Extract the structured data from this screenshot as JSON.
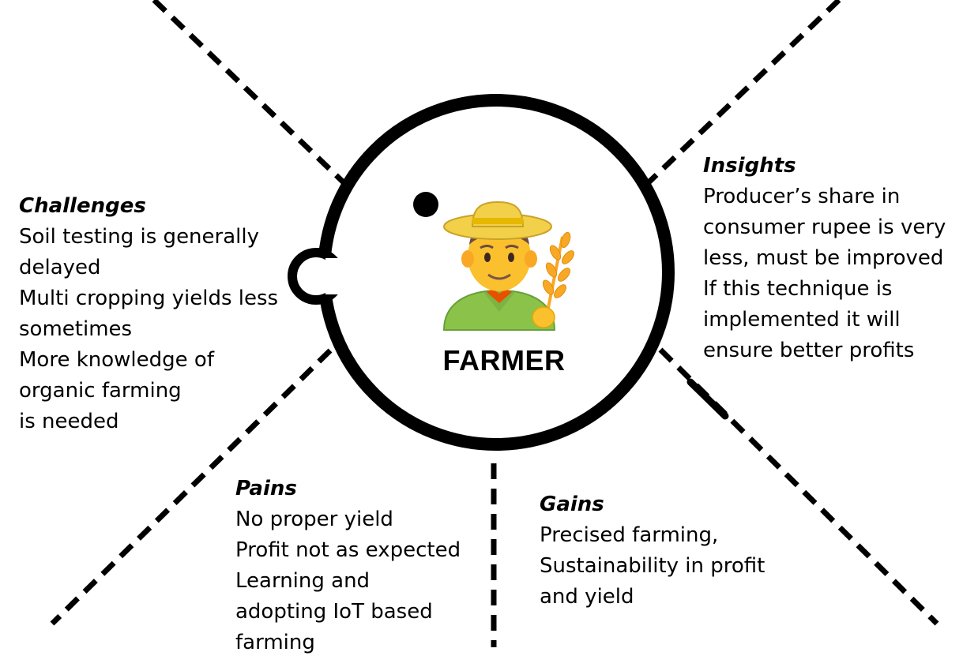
{
  "persona": {
    "label": "FARMER",
    "icon": "farmer-icon"
  },
  "quadrants": {
    "challenges": {
      "title": "Challenges",
      "lines": [
        "Soil testing is generally",
        "delayed",
        "Multi cropping yields less",
        "sometimes",
        "More knowledge of",
        "organic farming",
        "is needed"
      ]
    },
    "insights": {
      "title": "Insights",
      "lines": [
        "Producer’s share in",
        "consumer rupee is very",
        "less, must be improved",
        "If this technique is",
        "implemented it will",
        "ensure better profits"
      ]
    },
    "pains": {
      "title": "Pains",
      "lines": [
        "No proper yield",
        "Profit not as expected",
        "Learning and",
        "adopting IoT based",
        "farming"
      ]
    },
    "gains": {
      "title": "Gains",
      "lines": [
        "Precised farming,",
        "Sustainability in profit",
        "and yield"
      ]
    }
  },
  "colors": {
    "stroke": "#000000",
    "hat": "#F2D049",
    "skin": "#FBC02D",
    "shirt": "#8BC34A",
    "hair": "#6D4C41",
    "wheat": "#F9A825"
  }
}
